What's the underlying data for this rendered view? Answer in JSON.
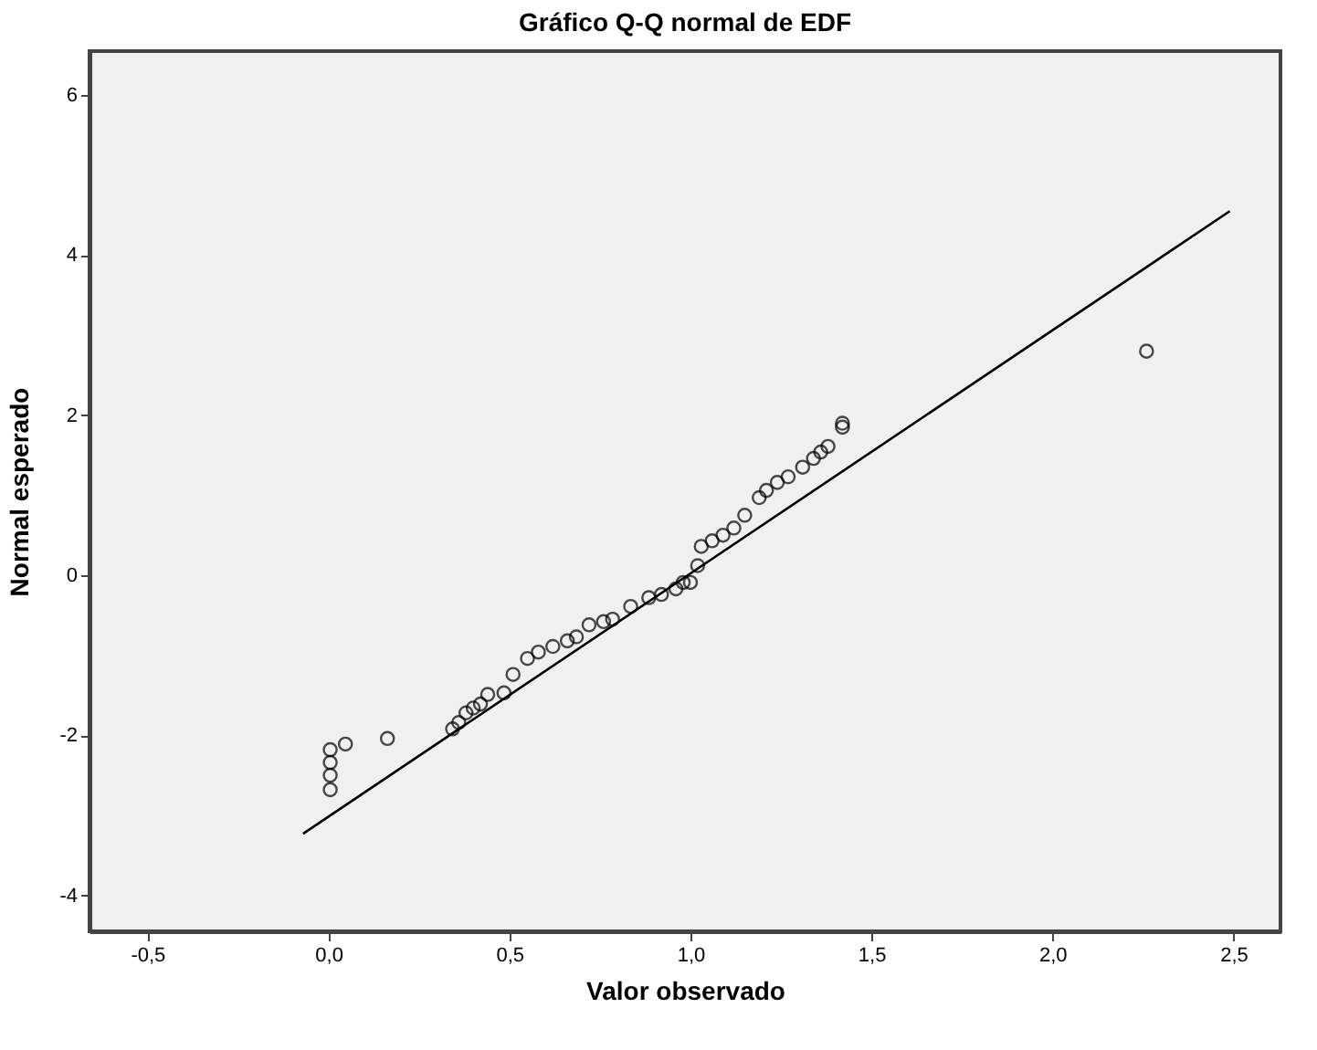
{
  "chart_data": {
    "type": "scatter",
    "title": "Gráfico Q-Q normal de EDF",
    "xlabel": "Valor observado",
    "ylabel": "Normal esperado",
    "xlim": [
      -0.66,
      2.63
    ],
    "ylim": [
      -4.45,
      6.55
    ],
    "xticks": [
      {
        "value": -0.5,
        "label": "-0,5"
      },
      {
        "value": 0,
        "label": "0,0"
      },
      {
        "value": 0.5,
        "label": "0,5"
      },
      {
        "value": 1,
        "label": "1,0"
      },
      {
        "value": 1.5,
        "label": "1,5"
      },
      {
        "value": 2,
        "label": "2,0"
      },
      {
        "value": 2.5,
        "label": "2,5"
      }
    ],
    "yticks": [
      -4,
      -2,
      0,
      2,
      4,
      6
    ],
    "grid": false,
    "series": [
      {
        "marker": "circle",
        "color": "#000000",
        "x": [
          0.005,
          0.005,
          0.005,
          0.005,
          0.047,
          0.163,
          0.343,
          0.36,
          0.38,
          0.4,
          0.42,
          0.44,
          0.485,
          0.51,
          0.55,
          0.58,
          0.62,
          0.66,
          0.685,
          0.72,
          0.76,
          0.785,
          0.835,
          0.885,
          0.92,
          0.96,
          0.98,
          1.0,
          1.02,
          1.03,
          1.06,
          1.09,
          1.12,
          1.15,
          1.19,
          1.21,
          1.24,
          1.27,
          1.31,
          1.34,
          1.36,
          1.38,
          1.42,
          1.42,
          2.26
        ],
        "values": [
          -2.18,
          -2.34,
          -2.5,
          -2.68,
          -2.11,
          -2.04,
          -1.92,
          -1.84,
          -1.72,
          -1.66,
          -1.61,
          -1.49,
          -1.47,
          -1.24,
          -1.04,
          -0.96,
          -0.89,
          -0.82,
          -0.77,
          -0.62,
          -0.58,
          -0.55,
          -0.39,
          -0.28,
          -0.24,
          -0.17,
          -0.09,
          -0.09,
          0.12,
          0.36,
          0.43,
          0.5,
          0.59,
          0.75,
          0.97,
          1.06,
          1.16,
          1.23,
          1.35,
          1.46,
          1.54,
          1.61,
          1.85,
          1.9,
          2.8
        ]
      },
      {
        "type": "line",
        "color": "#000000",
        "x": [
          -0.07,
          2.49
        ],
        "values": [
          -3.23,
          4.55
        ]
      }
    ]
  }
}
